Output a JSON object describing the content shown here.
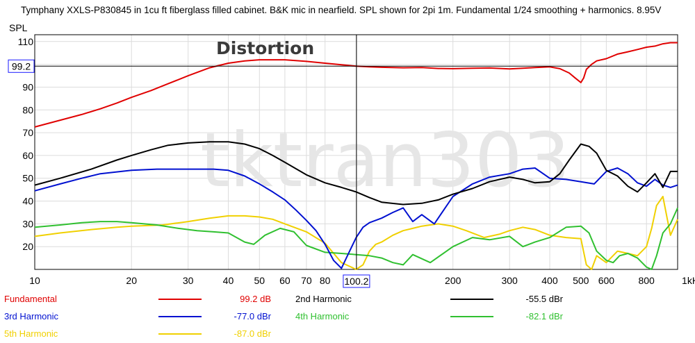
{
  "chart_data": {
    "type": "line",
    "title": "Tymphany XXLS-P830845 in 1cu ft fiberglass filled cabinet. B&K mic in nearfield. SPL shown for 2pi 1m. Fundamental 1/24 smoothing + harmonics. 8.95V",
    "ylabel": "SPL",
    "overlay_text": "Distortion",
    "watermark": "tktran303",
    "x_scale": "log",
    "xlim": [
      10,
      1000
    ],
    "ylim": [
      10,
      113
    ],
    "grid": true,
    "x_ticks": [
      {
        "v": 10,
        "label": "10"
      },
      {
        "v": 20,
        "label": "20"
      },
      {
        "v": 30,
        "label": "30"
      },
      {
        "v": 40,
        "label": "40"
      },
      {
        "v": 50,
        "label": "50"
      },
      {
        "v": 60,
        "label": "60"
      },
      {
        "v": 70,
        "label": "70"
      },
      {
        "v": 80,
        "label": "80"
      },
      {
        "v": 200,
        "label": "200"
      },
      {
        "v": 300,
        "label": "300"
      },
      {
        "v": 400,
        "label": "400"
      },
      {
        "v": 500,
        "label": "500"
      },
      {
        "v": 600,
        "label": "600"
      },
      {
        "v": 800,
        "label": "800"
      },
      {
        "v": 1000,
        "label": "1kHz"
      }
    ],
    "y_ticks": [
      {
        "v": 20,
        "label": "20"
      },
      {
        "v": 30,
        "label": "30"
      },
      {
        "v": 40,
        "label": "40"
      },
      {
        "v": 50,
        "label": "50"
      },
      {
        "v": 60,
        "label": "60"
      },
      {
        "v": 70,
        "label": "70"
      },
      {
        "v": 80,
        "label": "80"
      },
      {
        "v": 90,
        "label": "90"
      },
      {
        "v": 110,
        "label": "110"
      }
    ],
    "cursor": {
      "x": 100.2,
      "x_label": "100.2",
      "y": 99.2,
      "y_label": "99.2"
    },
    "series": [
      {
        "name": "Fundamental",
        "color": "#e00000",
        "legend_value": "99.2 dB",
        "x": [
          10,
          12,
          14,
          16,
          18,
          20,
          23,
          26,
          30,
          35,
          40,
          45,
          50,
          55,
          60,
          70,
          80,
          90,
          100,
          110,
          120,
          140,
          160,
          180,
          200,
          230,
          260,
          300,
          330,
          360,
          400,
          430,
          460,
          480,
          500,
          510,
          520,
          540,
          560,
          600,
          650,
          700,
          750,
          800,
          850,
          900,
          950,
          1000
        ],
        "y": [
          72.5,
          75.5,
          78,
          80.5,
          83,
          85.5,
          88.5,
          91.5,
          95,
          98.5,
          100.5,
          101.5,
          102,
          102,
          102,
          101.3,
          100.5,
          99.8,
          99.2,
          98.9,
          98.7,
          98.5,
          98.6,
          98.2,
          98.1,
          98.3,
          98.4,
          98,
          98.3,
          98.6,
          98.9,
          98.1,
          96.2,
          94,
          92,
          94,
          97.8,
          100,
          101.5,
          102.5,
          104.5,
          105.5,
          106.5,
          107.5,
          108,
          109,
          109.5,
          109.5
        ]
      },
      {
        "name": "2nd Harmonic",
        "color": "#000000",
        "legend_value": "-55.5 dBr",
        "x": [
          10,
          12,
          15,
          18,
          20,
          23,
          26,
          30,
          35,
          40,
          45,
          50,
          55,
          60,
          70,
          80,
          90,
          100,
          110,
          120,
          140,
          160,
          180,
          200,
          230,
          260,
          300,
          330,
          360,
          400,
          430,
          460,
          500,
          530,
          560,
          600,
          650,
          700,
          750,
          800,
          850,
          900,
          950,
          1000
        ],
        "y": [
          47,
          50,
          54,
          58,
          60,
          62.5,
          64.5,
          65.5,
          66,
          66,
          65,
          63,
          60,
          57,
          51.5,
          48,
          46,
          44,
          41.5,
          39.5,
          38.5,
          39,
          40.5,
          43,
          45.5,
          48.5,
          50.5,
          49.5,
          48,
          48.5,
          52,
          58,
          65,
          64,
          61,
          53.5,
          51,
          46.5,
          44,
          48,
          52,
          46,
          53,
          53
        ]
      },
      {
        "name": "3rd Harmonic",
        "color": "#0010d0",
        "legend_value": "-77.0 dBr",
        "x": [
          10,
          12,
          14,
          16,
          20,
          24,
          28,
          32,
          36,
          40,
          45,
          50,
          55,
          60,
          65,
          70,
          75,
          80,
          85,
          90,
          95,
          100,
          105,
          110,
          120,
          130,
          140,
          150,
          160,
          175,
          200,
          230,
          260,
          300,
          330,
          360,
          400,
          450,
          500,
          550,
          600,
          650,
          700,
          750,
          800,
          850,
          900,
          950,
          1000
        ],
        "y": [
          44.5,
          47.5,
          50,
          52,
          53.5,
          54,
          54,
          54,
          54,
          53.5,
          51,
          47.5,
          44,
          40.5,
          36,
          31.5,
          27,
          21,
          14,
          10.5,
          17.5,
          24,
          28.5,
          30.5,
          32.5,
          35,
          37,
          31,
          34,
          30,
          42,
          47.5,
          50.5,
          52,
          54,
          54.5,
          50,
          49.5,
          48.5,
          47.5,
          53,
          54.5,
          52,
          48,
          46.5,
          49.5,
          47,
          46,
          47
        ]
      },
      {
        "name": "4th Harmonic",
        "color": "#30c030",
        "legend_value": "-82.1 dBr",
        "x": [
          10,
          12,
          14,
          16,
          18,
          20,
          24,
          28,
          32,
          36,
          40,
          45,
          48,
          52,
          58,
          64,
          70,
          80,
          90,
          100,
          110,
          120,
          130,
          140,
          150,
          170,
          200,
          230,
          260,
          300,
          330,
          360,
          400,
          450,
          500,
          530,
          560,
          600,
          630,
          660,
          700,
          750,
          800,
          830,
          860,
          900,
          950,
          1000
        ],
        "y": [
          28.5,
          29.5,
          30.5,
          31,
          31,
          30.5,
          29.5,
          28,
          27,
          26.5,
          26,
          22,
          21,
          25,
          28,
          26.5,
          20.5,
          17.5,
          17,
          16.5,
          16,
          15,
          13,
          12,
          16.5,
          13,
          20,
          24,
          23,
          24.5,
          20,
          22,
          24,
          28.5,
          29,
          26,
          18,
          14,
          13,
          16,
          17,
          15,
          11,
          10,
          16,
          26,
          30,
          37
        ]
      },
      {
        "name": "5th Harmonic",
        "color": "#f0d000",
        "legend_value": "-87.0 dBr",
        "x": [
          10,
          12,
          15,
          18,
          20,
          25,
          30,
          35,
          40,
          45,
          50,
          55,
          60,
          70,
          80,
          90,
          100,
          105,
          110,
          115,
          120,
          130,
          140,
          150,
          160,
          180,
          200,
          220,
          250,
          280,
          300,
          330,
          360,
          400,
          450,
          500,
          520,
          540,
          560,
          600,
          650,
          700,
          750,
          800,
          830,
          860,
          900,
          950,
          1000
        ],
        "y": [
          24.5,
          26,
          27.5,
          28.5,
          29,
          29.5,
          31,
          32.5,
          33.5,
          33.5,
          33,
          32,
          30,
          26.5,
          21.5,
          13,
          10,
          12,
          18,
          21,
          22,
          25,
          27,
          28,
          29,
          30,
          29,
          27,
          24,
          25.5,
          27,
          28.5,
          27.5,
          25,
          24,
          23.5,
          12,
          10,
          16,
          13,
          18,
          17,
          16,
          20,
          28,
          38,
          42,
          25,
          32
        ]
      }
    ]
  }
}
